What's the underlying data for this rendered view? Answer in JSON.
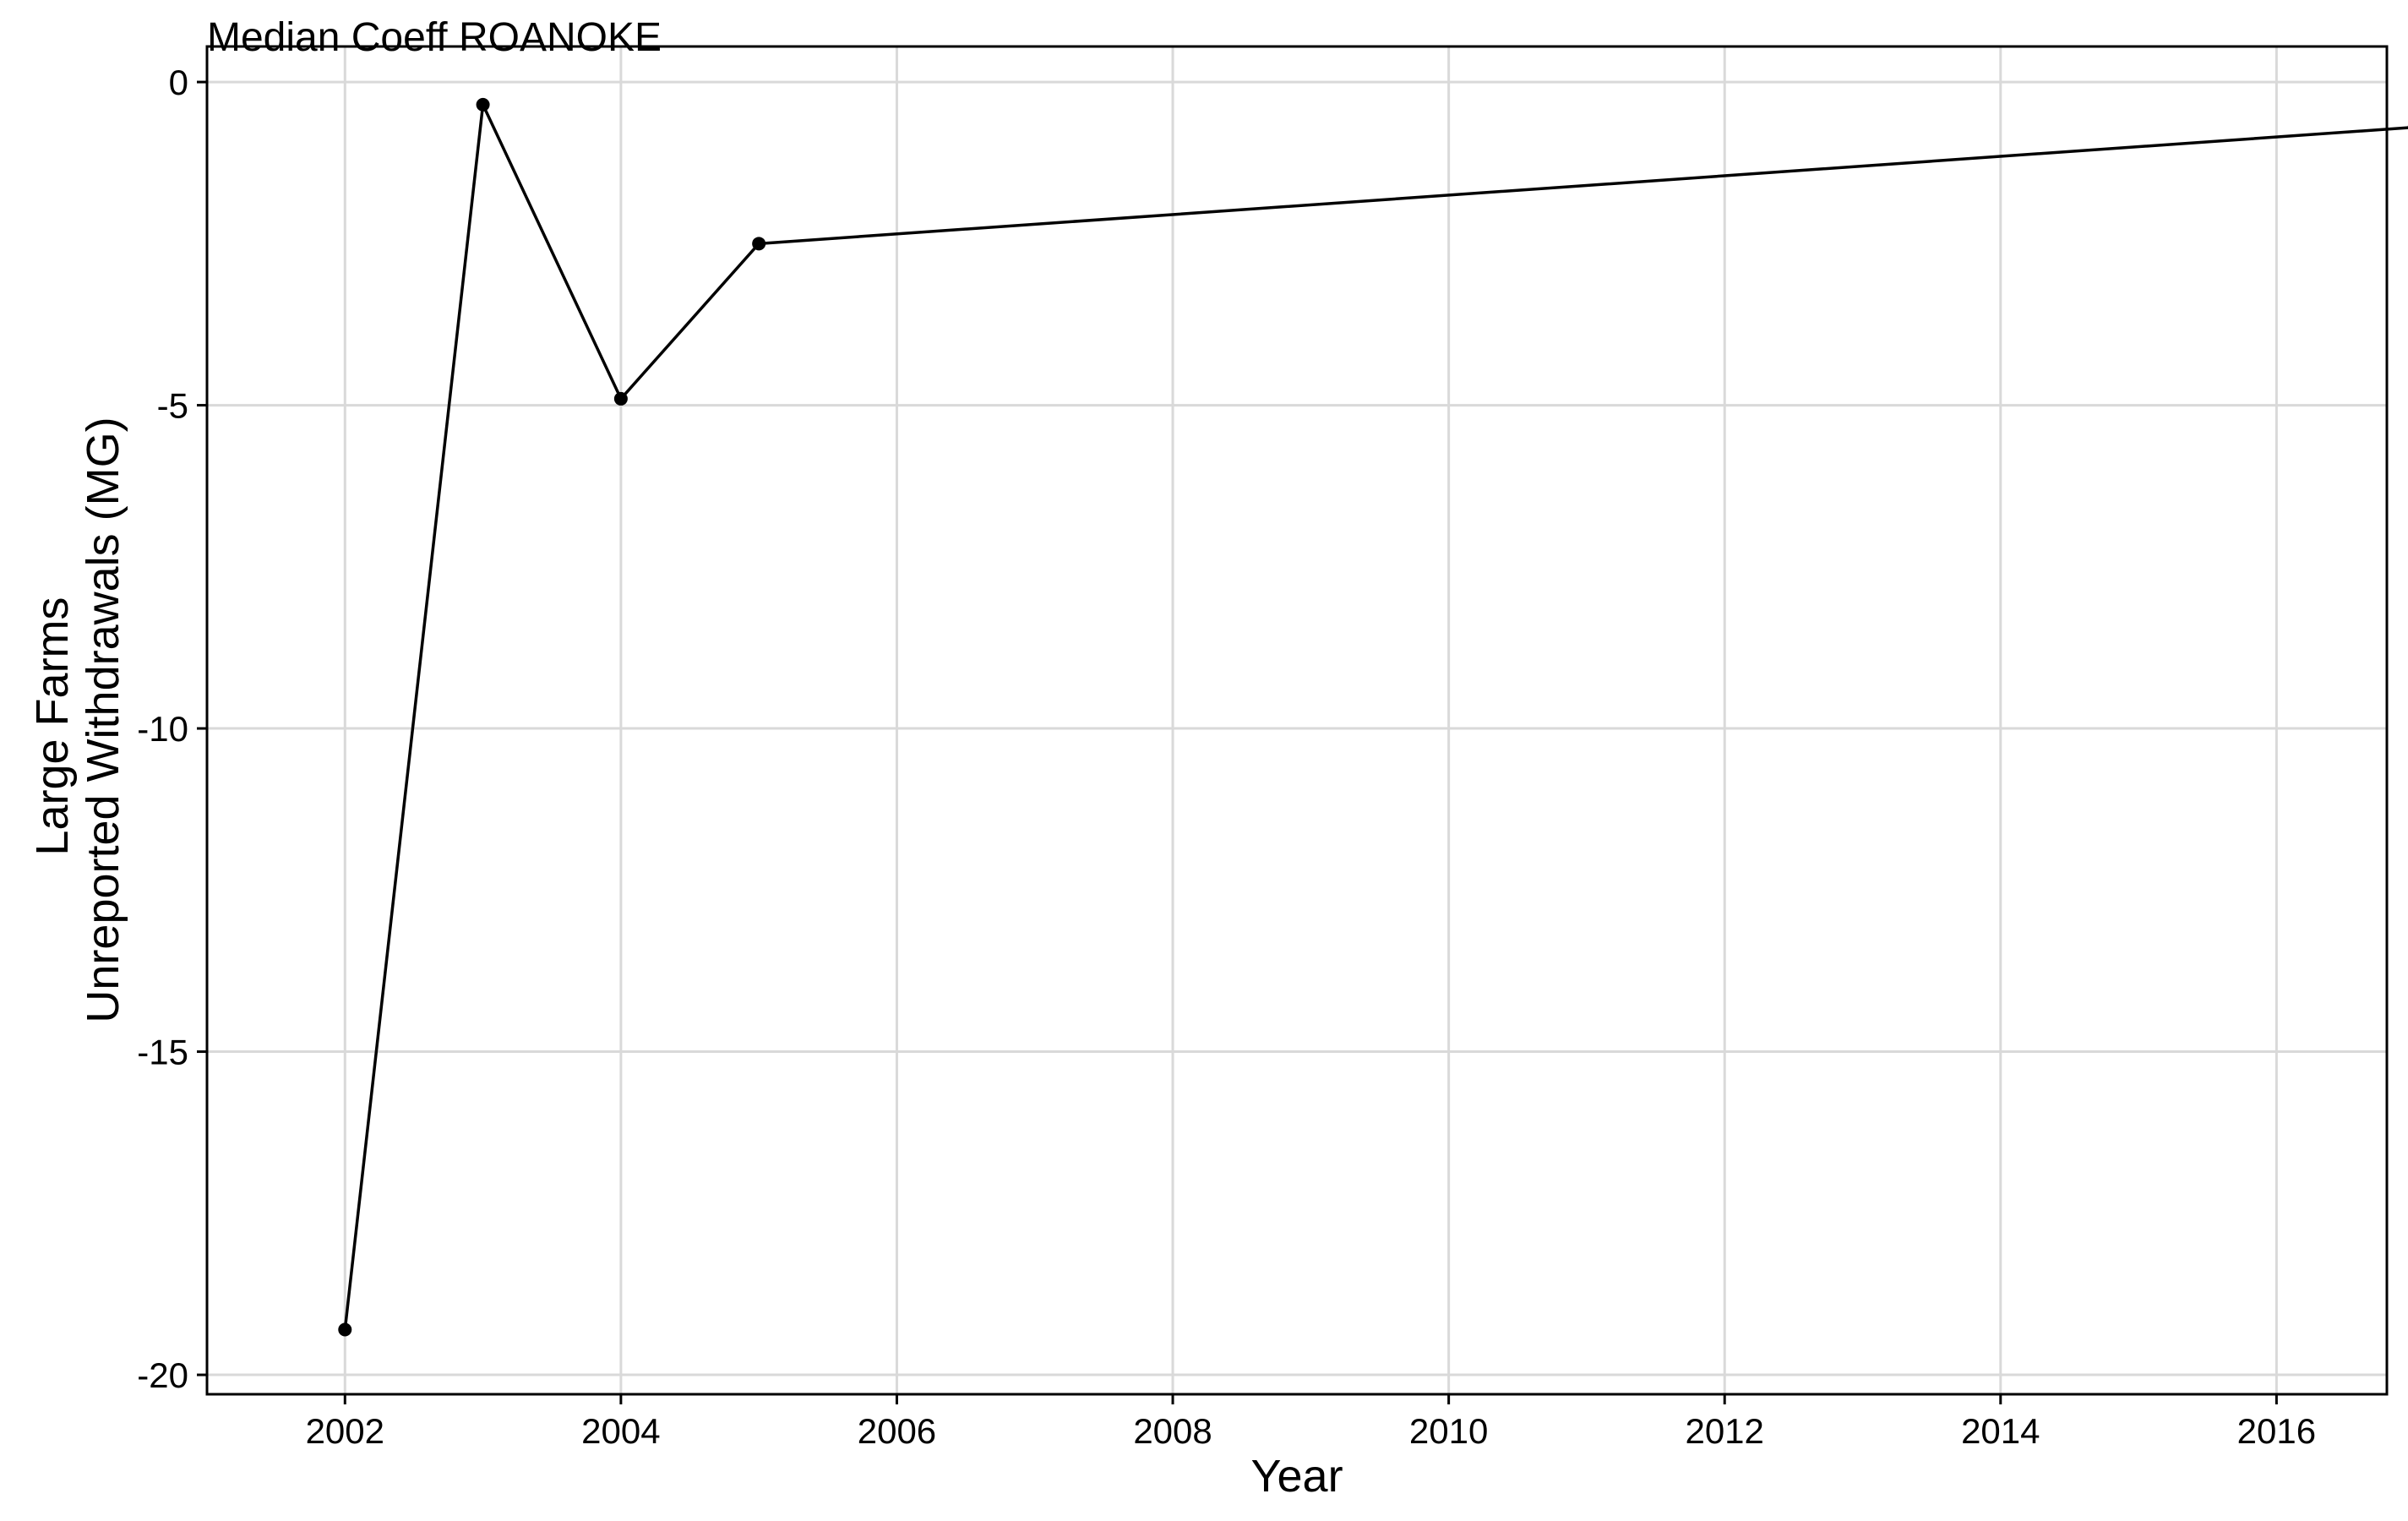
{
  "chart_data": {
    "type": "line",
    "title": "Median Coeff ROANOKE",
    "xlabel": "Year",
    "ylabel_lines": [
      "Large Farms",
      "Unreported Withdrawals (MG)"
    ],
    "xlim": [
      2001,
      2016.8
    ],
    "ylim": [
      -20.3,
      0.55
    ],
    "x_ticks": [
      2002,
      2004,
      2006,
      2008,
      2010,
      2012,
      2014,
      2016
    ],
    "x_tick_labels": [
      "2002",
      "2004",
      "2006",
      "2008",
      "2010",
      "2012",
      "2014",
      "2016"
    ],
    "y_ticks": [
      0,
      -5,
      -10,
      -15,
      -20
    ],
    "y_tick_labels": [
      "0",
      "-5",
      "-10",
      "-15",
      "-20"
    ],
    "grid": true,
    "colors": {
      "line": "#000000",
      "grid": "#d9d9d9",
      "axis": "#000000"
    },
    "series": [
      {
        "x": [
          2002,
          2003,
          2004,
          2005,
          2017
        ],
        "y": [
          -19.3,
          -0.35,
          -4.9,
          -2.5,
          -0.7
        ]
      }
    ]
  }
}
